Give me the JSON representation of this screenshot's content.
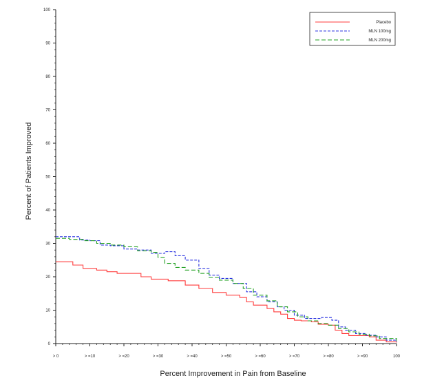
{
  "chart_data": {
    "type": "line",
    "title": "",
    "xlabel": "Percent Improvement in Pain from Baseline",
    "ylabel": "Percent of Patients Improved",
    "xlim": [
      0,
      100
    ],
    "ylim": [
      0,
      100
    ],
    "x_tick_labels": [
      "> 0",
      "> =10",
      "> =20",
      "> =30",
      "> =40",
      "> =50",
      "> =60",
      "> =70",
      "> =80",
      "> =90",
      "100"
    ],
    "y_ticks": [
      0,
      10,
      20,
      30,
      40,
      50,
      60,
      70,
      80,
      90,
      100
    ],
    "legend_position": "top-right",
    "series": [
      {
        "name": "Placebo",
        "color": "#ff3b3b",
        "dash": "solid",
        "points": [
          [
            0,
            24.5
          ],
          [
            5,
            23.5
          ],
          [
            8,
            22.5
          ],
          [
            12,
            22
          ],
          [
            15,
            21.5
          ],
          [
            18,
            21
          ],
          [
            25,
            20
          ],
          [
            28,
            19.3
          ],
          [
            33,
            18.8
          ],
          [
            38,
            17.5
          ],
          [
            42,
            16.5
          ],
          [
            46,
            15.3
          ],
          [
            50,
            14.5
          ],
          [
            54,
            13.8
          ],
          [
            56,
            12.5
          ],
          [
            58,
            11.5
          ],
          [
            62,
            10.5
          ],
          [
            64,
            9.5
          ],
          [
            66,
            8.8
          ],
          [
            68,
            7.5
          ],
          [
            70,
            7
          ],
          [
            72,
            6.8
          ],
          [
            75,
            6.5
          ],
          [
            77,
            5.8
          ],
          [
            80,
            5.5
          ],
          [
            82,
            4
          ],
          [
            84,
            3
          ],
          [
            86,
            2.4
          ],
          [
            90,
            2.4
          ],
          [
            92,
            2
          ],
          [
            94,
            1
          ],
          [
            97,
            0.5
          ],
          [
            100,
            0.3
          ]
        ]
      },
      {
        "name": "MLN 100mg",
        "color": "#2b34e0",
        "dash": "4,2",
        "points": [
          [
            0,
            32
          ],
          [
            4,
            32
          ],
          [
            7,
            31
          ],
          [
            10,
            30.8
          ],
          [
            13,
            29.5
          ],
          [
            16,
            29.3
          ],
          [
            20,
            28.3
          ],
          [
            24,
            28
          ],
          [
            28,
            27
          ],
          [
            32,
            27.5
          ],
          [
            35,
            26.3
          ],
          [
            38,
            25
          ],
          [
            42,
            22.5
          ],
          [
            45,
            20.5
          ],
          [
            48,
            19.5
          ],
          [
            52,
            18
          ],
          [
            56,
            15.5
          ],
          [
            59,
            14
          ],
          [
            62,
            12.5
          ],
          [
            65,
            11
          ],
          [
            67,
            10
          ],
          [
            70,
            8.5
          ],
          [
            73,
            7.5
          ],
          [
            75,
            7.5
          ],
          [
            78,
            7.8
          ],
          [
            81,
            7
          ],
          [
            83,
            5
          ],
          [
            85,
            4
          ],
          [
            88,
            3
          ],
          [
            91,
            2.5
          ],
          [
            94,
            2
          ],
          [
            97,
            1
          ],
          [
            100,
            0.5
          ]
        ]
      },
      {
        "name": "MLN 200mg",
        "color": "#22a022",
        "dash": "6,3",
        "points": [
          [
            0,
            31.5
          ],
          [
            4,
            31.2
          ],
          [
            8,
            30.8
          ],
          [
            12,
            30
          ],
          [
            16,
            29.5
          ],
          [
            20,
            29
          ],
          [
            24,
            27.8
          ],
          [
            28,
            27.3
          ],
          [
            30,
            25.8
          ],
          [
            32,
            24
          ],
          [
            35,
            22.8
          ],
          [
            38,
            22
          ],
          [
            42,
            21
          ],
          [
            45,
            19.8
          ],
          [
            48,
            19
          ],
          [
            52,
            18
          ],
          [
            55,
            16.5
          ],
          [
            58,
            14.5
          ],
          [
            62,
            12.8
          ],
          [
            65,
            11
          ],
          [
            68,
            9.5
          ],
          [
            71,
            8
          ],
          [
            74,
            6.8
          ],
          [
            77,
            6
          ],
          [
            80,
            5.5
          ],
          [
            83,
            4.5
          ],
          [
            86,
            3.5
          ],
          [
            89,
            2.8
          ],
          [
            92,
            2.3
          ],
          [
            95,
            1.5
          ],
          [
            100,
            0.8
          ]
        ]
      }
    ]
  }
}
